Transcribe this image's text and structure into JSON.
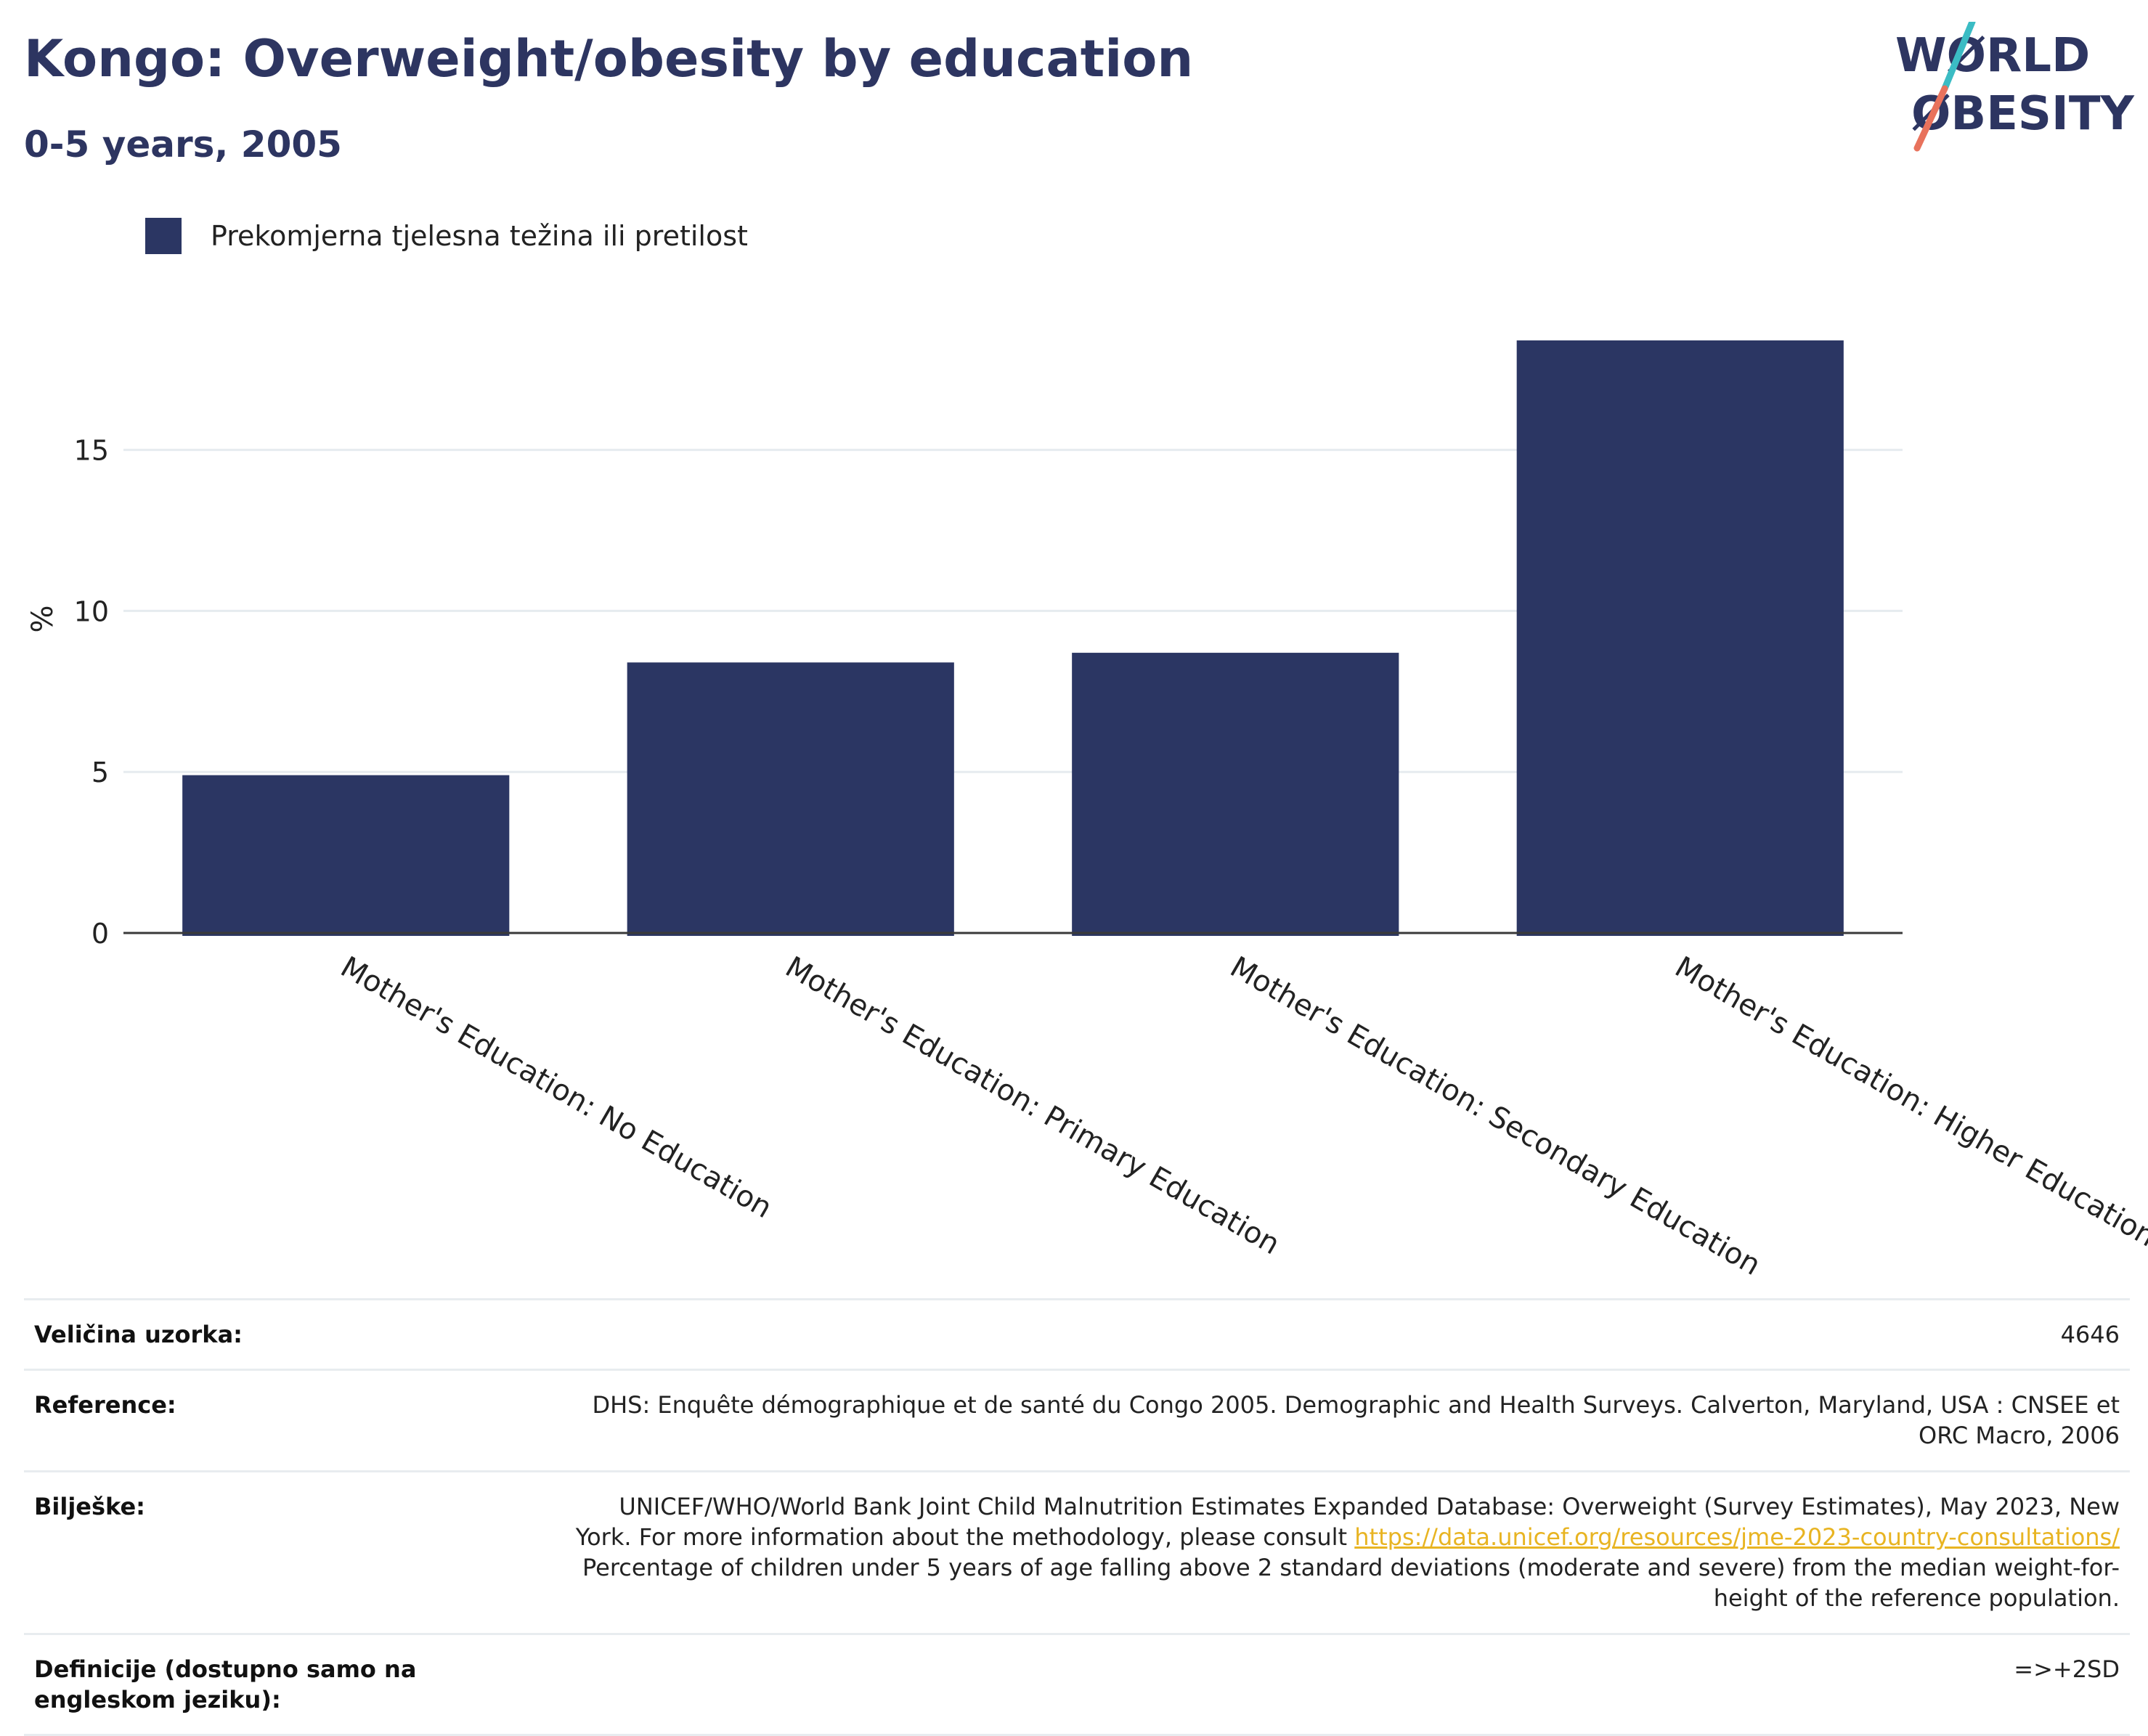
{
  "header": {
    "title": "Kongo: Overweight/obesity by education",
    "subtitle": "0-5 years, 2005"
  },
  "logo": {
    "line1": "WØRLD",
    "line2": "ØBESITY",
    "colors": {
      "text": "#2d3561",
      "slash_top": "#3bbcc4",
      "slash_bottom": "#e8725c"
    }
  },
  "legend": {
    "label": "Prekomjerna tjelesna težina ili pretilost",
    "color": "#2b3663"
  },
  "chart_data": {
    "type": "bar",
    "categories": [
      "Mother's Education: No Education",
      "Mother's Education: Primary Education",
      "Mother's Education: Secondary Education",
      "Mother's Education: Higher Education"
    ],
    "series": [
      {
        "name": "Prekomjerna tjelesna težina ili pretilost",
        "values": [
          4.9,
          8.4,
          8.7,
          18.4
        ]
      }
    ],
    "ylabel": "%",
    "ylim": [
      0,
      19.5
    ],
    "yticks": [
      0,
      5,
      10,
      15
    ],
    "grid": true,
    "color": "#2b3663"
  },
  "meta": {
    "sample_size_label": "Veličina uzorka:",
    "sample_size_value": "4646",
    "reference_label": "Reference:",
    "reference_value": "DHS: Enquête démographique et de santé du Congo 2005. Demographic and Health Surveys. Calverton, Maryland, USA : CNSEE et ORC Macro, 2006",
    "notes_label": "Bilješke:",
    "notes_text_1": "UNICEF/WHO/World Bank Joint Child Malnutrition Estimates Expanded Database: Overweight (Survey Estimates), May 2023, New York. For more information about the methodology, please consult ",
    "notes_link": "https://data.unicef.org/resources/jme-2023-country-consultations/",
    "notes_text_2": " Percentage of children under 5 years of age falling above 2 standard deviations (moderate and severe) from the median weight-for-height of the reference population.",
    "definitions_label": "Definicije (dostupno samo na engleskom jeziku):",
    "definitions_value": "=>+2SD"
  }
}
